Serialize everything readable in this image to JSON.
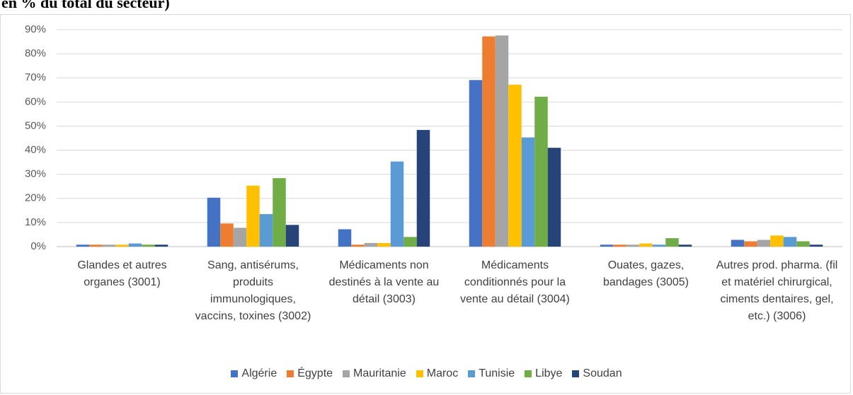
{
  "chart_data": {
    "type": "bar",
    "title": "en % du total du secteur)",
    "categories": [
      "Glandes et autres organes (3001)",
      "Sang, antisérums, produits immunologiques, vaccins, toxines (3002)",
      "Médicaments non destinés à la vente au détail (3003)",
      "Médicaments conditionnés pour la vente au détail (3004)",
      "Ouates, gazes, bandages (3005)",
      "Autres prod. pharma. (fil et matériel chirurgical, ciments dentaires, gel, etc.) (3006)"
    ],
    "series": [
      {
        "name": "Algérie",
        "color": "#4472c4",
        "values": [
          0.8,
          20.3,
          7.2,
          69.1,
          0.8,
          2.8
        ]
      },
      {
        "name": "Égypte",
        "color": "#ed7d31",
        "values": [
          0.8,
          9.6,
          0.8,
          87.2,
          0.8,
          2.2
        ]
      },
      {
        "name": "Mauritanie",
        "color": "#a5a5a5",
        "values": [
          0.8,
          7.8,
          1.5,
          87.6,
          0.8,
          2.8
        ]
      },
      {
        "name": "Maroc",
        "color": "#ffc000",
        "values": [
          0.8,
          25.3,
          1.5,
          67.2,
          1.3,
          4.6
        ]
      },
      {
        "name": "Tunisie",
        "color": "#5b9bd5",
        "values": [
          1.3,
          13.5,
          35.3,
          45.3,
          0.8,
          4.0
        ]
      },
      {
        "name": "Libye",
        "color": "#70ad47",
        "values": [
          0.8,
          28.4,
          4.0,
          62.2,
          3.5,
          2.2
        ]
      },
      {
        "name": "Soudan",
        "color": "#264478",
        "values": [
          0.8,
          9.0,
          48.4,
          41.0,
          0.8,
          0.8
        ]
      }
    ],
    "ylim": [
      0,
      90
    ],
    "yticks": [
      {
        "value": 0,
        "label": "0%"
      },
      {
        "value": 10,
        "label": "10%"
      },
      {
        "value": 20,
        "label": "20%"
      },
      {
        "value": 30,
        "label": "30%"
      },
      {
        "value": 40,
        "label": "40%"
      },
      {
        "value": 50,
        "label": "50%"
      },
      {
        "value": 60,
        "label": "60%"
      },
      {
        "value": 70,
        "label": "70%"
      },
      {
        "value": 80,
        "label": "80%"
      },
      {
        "value": 90,
        "label": "90%"
      }
    ],
    "grid": true,
    "legend": "bottom"
  }
}
